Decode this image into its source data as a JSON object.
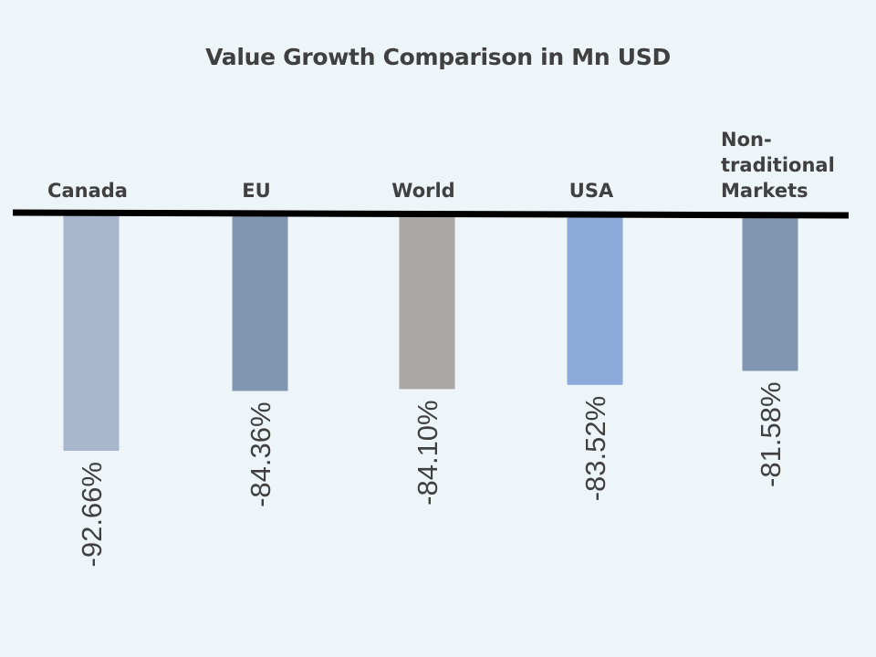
{
  "chart_data": {
    "type": "bar",
    "title": "Value Growth Comparison  in Mn USD",
    "categories": [
      "Canada",
      "EU",
      "World",
      "USA",
      "Non-traditional Markets"
    ],
    "category_label_lines": [
      [
        "Canada"
      ],
      [
        "EU"
      ],
      [
        "World"
      ],
      [
        "USA"
      ],
      [
        "Non-",
        "traditional",
        "Markets"
      ]
    ],
    "values": [
      -92.66,
      -84.36,
      -84.1,
      -83.52,
      -81.58
    ],
    "data_labels": [
      "-92.66%",
      "-84.36%",
      "-84.10%",
      "-83.52%",
      "-81.58%"
    ],
    "unit": "%",
    "colors": [
      "#a8b6cb",
      "#8196b1",
      "#aaa7a7",
      "#8eaadb",
      "#8196b1"
    ],
    "axis_color": "#000000",
    "category_axis_position": "top",
    "data_label_orientation": "vertical",
    "xlabel": "",
    "ylabel": "",
    "grid": false,
    "legend": "none"
  }
}
